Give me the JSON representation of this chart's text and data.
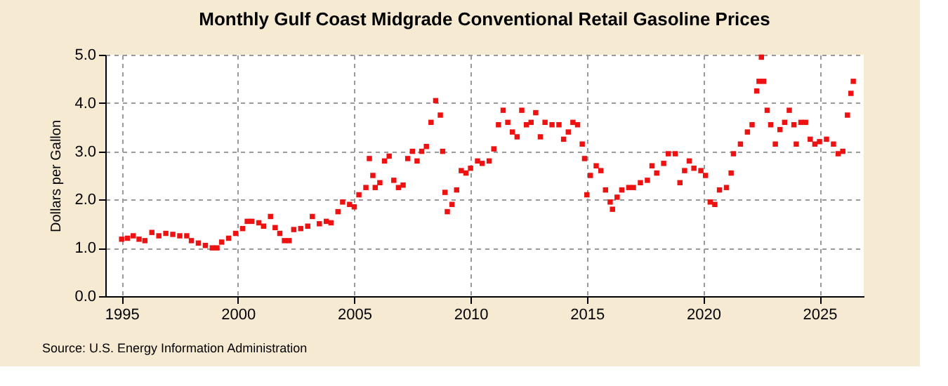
{
  "chart_data": {
    "type": "scatter",
    "title": "Monthly Gulf Coast Midgrade Conventional Retail Gasoline Prices",
    "ylabel": "Dollars per Gallon",
    "annotations": [
      "Source: U.S. Energy Information Administration"
    ],
    "x": [
      1995.0,
      1995.25,
      1995.5,
      1995.75,
      1996.0,
      1996.3,
      1996.6,
      1996.9,
      1997.2,
      1997.5,
      1997.8,
      1998.0,
      1998.3,
      1998.6,
      1998.9,
      1999.1,
      1999.3,
      1999.6,
      1999.9,
      2000.2,
      2000.4,
      2000.6,
      2000.9,
      2001.1,
      2001.4,
      2001.6,
      2001.8,
      2002.0,
      2002.2,
      2002.4,
      2002.7,
      2003.0,
      2003.2,
      2003.5,
      2003.8,
      2004.0,
      2004.3,
      2004.5,
      2004.8,
      2005.0,
      2005.2,
      2005.5,
      2005.65,
      2005.8,
      2005.9,
      2006.1,
      2006.3,
      2006.5,
      2006.7,
      2006.9,
      2007.1,
      2007.3,
      2007.5,
      2007.7,
      2007.9,
      2008.1,
      2008.3,
      2008.5,
      2008.7,
      2008.8,
      2008.9,
      2009.0,
      2009.2,
      2009.4,
      2009.6,
      2009.8,
      2010.0,
      2010.3,
      2010.5,
      2010.8,
      2011.0,
      2011.2,
      2011.4,
      2011.6,
      2011.8,
      2012.0,
      2012.2,
      2012.4,
      2012.6,
      2012.8,
      2013.0,
      2013.2,
      2013.5,
      2013.8,
      2014.0,
      2014.2,
      2014.4,
      2014.6,
      2014.8,
      2014.9,
      2015.0,
      2015.15,
      2015.4,
      2015.6,
      2015.8,
      2016.0,
      2016.1,
      2016.3,
      2016.5,
      2016.8,
      2017.0,
      2017.3,
      2017.6,
      2017.8,
      2018.0,
      2018.3,
      2018.5,
      2018.8,
      2019.0,
      2019.2,
      2019.4,
      2019.6,
      2019.9,
      2020.1,
      2020.3,
      2020.5,
      2020.7,
      2021.0,
      2021.2,
      2021.3,
      2021.6,
      2021.9,
      2022.1,
      2022.3,
      2022.4,
      2022.5,
      2022.6,
      2022.75,
      2022.9,
      2023.1,
      2023.3,
      2023.5,
      2023.7,
      2023.9,
      2024.0,
      2024.2,
      2024.4,
      2024.6,
      2024.8,
      2025.0,
      2025.3,
      2025.6,
      2025.8,
      2026.0,
      2026.2,
      2026.35,
      2026.45
    ],
    "series": [
      {
        "color": "#ee1111",
        "values": [
          1.18,
          1.2,
          1.25,
          1.18,
          1.15,
          1.32,
          1.25,
          1.3,
          1.28,
          1.25,
          1.25,
          1.15,
          1.1,
          1.05,
          1.0,
          1.0,
          1.12,
          1.2,
          1.3,
          1.4,
          1.55,
          1.55,
          1.52,
          1.45,
          1.65,
          1.42,
          1.3,
          1.15,
          1.15,
          1.38,
          1.4,
          1.45,
          1.65,
          1.5,
          1.55,
          1.52,
          1.75,
          1.95,
          1.9,
          1.85,
          2.1,
          2.25,
          2.85,
          2.5,
          2.25,
          2.35,
          2.8,
          2.9,
          2.4,
          2.25,
          2.3,
          2.85,
          3.0,
          2.8,
          3.0,
          3.1,
          3.6,
          4.05,
          3.75,
          3.0,
          2.15,
          1.75,
          1.9,
          2.2,
          2.6,
          2.55,
          2.65,
          2.8,
          2.75,
          2.8,
          3.05,
          3.55,
          3.85,
          3.6,
          3.4,
          3.3,
          3.85,
          3.55,
          3.6,
          3.8,
          3.3,
          3.6,
          3.55,
          3.55,
          3.25,
          3.4,
          3.6,
          3.55,
          3.15,
          2.85,
          2.1,
          2.5,
          2.7,
          2.6,
          2.2,
          1.95,
          1.8,
          2.05,
          2.2,
          2.25,
          2.25,
          2.35,
          2.4,
          2.7,
          2.55,
          2.75,
          2.95,
          2.95,
          2.35,
          2.6,
          2.8,
          2.65,
          2.6,
          2.5,
          1.95,
          1.9,
          2.2,
          2.25,
          2.55,
          2.95,
          3.15,
          3.4,
          3.55,
          4.25,
          4.45,
          4.95,
          4.45,
          3.85,
          3.55,
          3.15,
          3.45,
          3.6,
          3.85,
          3.55,
          3.15,
          3.6,
          3.6,
          3.25,
          3.15,
          3.2,
          3.25,
          3.15,
          2.95,
          3.0,
          3.75,
          4.2,
          4.45
        ]
      }
    ],
    "xlim": [
      1994.3,
      2026.9
    ],
    "xticks": [
      1995,
      2000,
      2005,
      2010,
      2015,
      2020,
      2025
    ],
    "ylim": [
      0,
      5
    ],
    "yticks": [
      {
        "value": 0,
        "label": "0.0"
      },
      {
        "value": 1,
        "label": "1.0"
      },
      {
        "value": 2,
        "label": "2.0"
      },
      {
        "value": 3,
        "label": "3.0"
      },
      {
        "value": 4,
        "label": "4.0"
      },
      {
        "value": 5,
        "label": "5.0"
      }
    ],
    "grid": true,
    "marker": "square"
  }
}
